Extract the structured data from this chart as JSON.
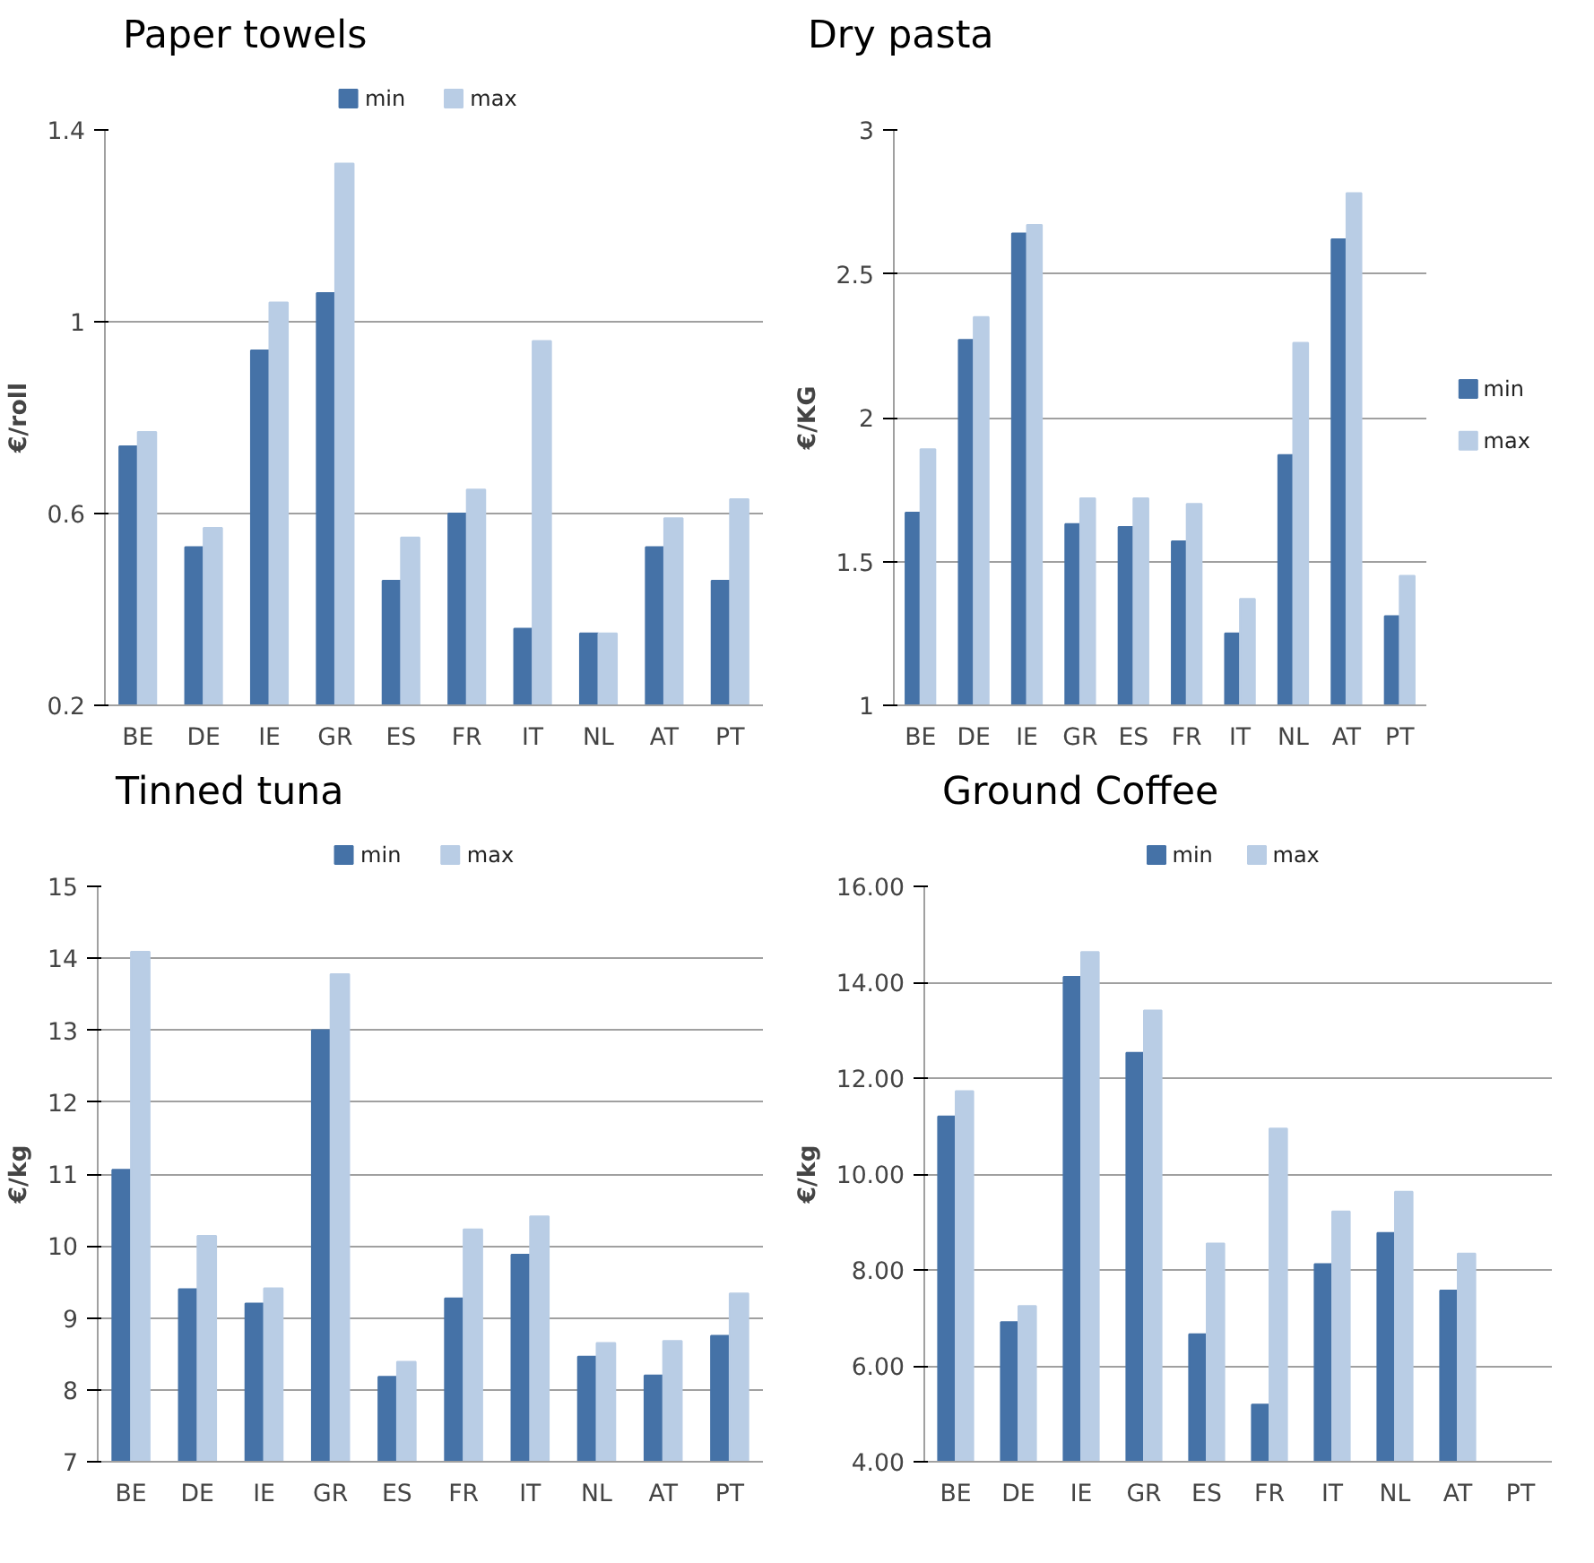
{
  "chart_data": [
    {
      "type": "bar",
      "title": "Paper towels",
      "ylabel": "€/roll",
      "categories": [
        "BE",
        "DE",
        "IE",
        "GR",
        "ES",
        "FR",
        "IT",
        "NL",
        "AT",
        "PT"
      ],
      "series": [
        {
          "name": "min",
          "color": "#4572a7",
          "values": [
            0.74,
            0.53,
            0.94,
            1.06,
            0.46,
            0.6,
            0.36,
            0.35,
            0.53,
            0.46
          ]
        },
        {
          "name": "max",
          "color": "#b9cde5",
          "values": [
            0.77,
            0.57,
            1.04,
            1.33,
            0.55,
            0.65,
            0.96,
            0.35,
            0.59,
            0.63
          ]
        }
      ],
      "ylim": [
        0.2,
        1.4
      ],
      "yticks": [
        0.2,
        0.6,
        1,
        1.4
      ],
      "grid": "y",
      "legend": "top"
    },
    {
      "type": "bar",
      "title": "Dry pasta",
      "ylabel": "€/KG",
      "categories": [
        "BE",
        "DE",
        "IE",
        "GR",
        "ES",
        "FR",
        "IT",
        "NL",
        "AT",
        "PT"
      ],
      "series": [
        {
          "name": "min",
          "color": "#4572a7",
          "values": [
            1.67,
            2.27,
            2.64,
            1.63,
            1.62,
            1.57,
            1.25,
            1.87,
            2.62,
            1.31
          ]
        },
        {
          "name": "max",
          "color": "#b9cde5",
          "values": [
            1.89,
            2.35,
            2.67,
            1.72,
            1.72,
            1.7,
            1.37,
            2.26,
            2.78,
            1.45
          ]
        }
      ],
      "ylim": [
        1,
        3
      ],
      "yticks": [
        1,
        1.5,
        2,
        2.5,
        3
      ],
      "grid": "y",
      "legend": "right"
    },
    {
      "type": "bar",
      "title": "Tinned tuna",
      "ylabel": "€/kg",
      "categories": [
        "BE",
        "DE",
        "IE",
        "GR",
        "ES",
        "FR",
        "IT",
        "NL",
        "AT",
        "PT"
      ],
      "series": [
        {
          "name": "min",
          "color": "#4572a7",
          "values": [
            11.06,
            9.4,
            9.2,
            13.0,
            8.18,
            9.27,
            9.88,
            8.46,
            8.2,
            8.75
          ]
        },
        {
          "name": "max",
          "color": "#b9cde5",
          "values": [
            14.09,
            10.14,
            9.41,
            13.78,
            8.39,
            10.23,
            10.41,
            8.65,
            8.68,
            9.34
          ]
        }
      ],
      "ylim": [
        7,
        15
      ],
      "yticks": [
        7,
        8,
        9,
        10,
        11,
        12,
        13,
        14,
        15
      ],
      "grid": "y",
      "legend": "top"
    },
    {
      "type": "bar",
      "title": "Ground Coffee",
      "ylabel": "€/kg",
      "categories": [
        "BE",
        "DE",
        "IE",
        "GR",
        "ES",
        "FR",
        "IT",
        "NL",
        "AT",
        "PT"
      ],
      "series": [
        {
          "name": "min",
          "color": "#4572a7",
          "values": [
            11.2,
            6.91,
            14.11,
            12.53,
            6.66,
            5.19,
            8.12,
            8.77,
            7.57,
            null
          ]
        },
        {
          "name": "max",
          "color": "#b9cde5",
          "values": [
            11.73,
            7.25,
            14.63,
            13.41,
            8.55,
            10.95,
            9.22,
            9.63,
            8.34,
            null
          ]
        }
      ],
      "ylim": [
        4,
        16
      ],
      "yticks": [
        {
          "value": 4,
          "label": "4.00"
        },
        {
          "value": 6,
          "label": "6.00"
        },
        {
          "value": 8,
          "label": "8.00"
        },
        {
          "value": 10,
          "label": "10.00"
        },
        {
          "value": 12,
          "label": "12.00"
        },
        {
          "value": 14,
          "label": "14.00"
        },
        {
          "value": 16,
          "label": "16.00"
        }
      ],
      "grid": "y",
      "legend": "top"
    }
  ]
}
